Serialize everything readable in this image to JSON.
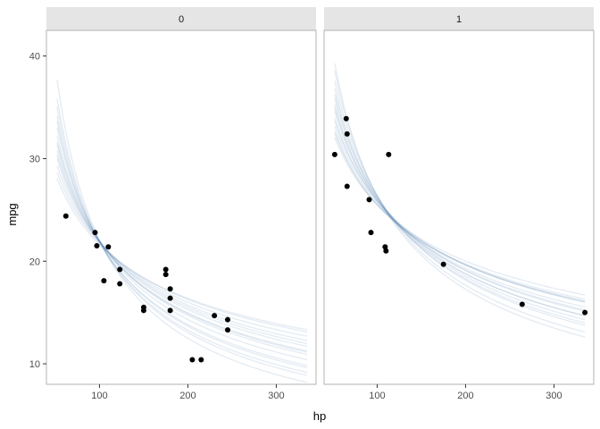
{
  "chart_data": {
    "type": "scatter",
    "title": "",
    "xlabel": "hp",
    "ylabel": "mpg",
    "xlim": [
      40,
      345
    ],
    "ylim": [
      8,
      42.5
    ],
    "x_ticks": [
      100,
      200,
      300
    ],
    "y_ticks": [
      10,
      20,
      30,
      40
    ],
    "grid": false,
    "colors": {
      "points": "#000000",
      "curves": "#4a7ba7",
      "strip_fill": "#e5e5e5",
      "panel_border": "#b3b3b3"
    },
    "curve_model": "mpg = a * hp^b (posterior draws)",
    "panels": [
      {
        "label": "0",
        "curve_range": [
          52,
          335
        ],
        "points": [
          [
            62,
            24.4
          ],
          [
            95,
            22.8
          ],
          [
            97,
            21.5
          ],
          [
            105,
            18.1
          ],
          [
            110,
            21.4
          ],
          [
            123,
            19.2
          ],
          [
            123,
            17.8
          ],
          [
            150,
            15.5
          ],
          [
            150,
            15.2
          ],
          [
            175,
            18.7
          ],
          [
            175,
            19.2
          ],
          [
            180,
            16.4
          ],
          [
            180,
            17.3
          ],
          [
            180,
            15.2
          ],
          [
            205,
            10.4
          ],
          [
            215,
            10.4
          ],
          [
            230,
            14.7
          ],
          [
            245,
            13.3
          ],
          [
            245,
            14.3
          ]
        ],
        "curve_draws": [
          [
            27.5,
            -0.45
          ],
          [
            29.0,
            -0.55
          ],
          [
            30.2,
            -0.62
          ],
          [
            28.3,
            -0.5
          ],
          [
            31.0,
            -0.68
          ],
          [
            27.0,
            -0.42
          ],
          [
            29.6,
            -0.58
          ],
          [
            30.6,
            -0.66
          ],
          [
            28.0,
            -0.48
          ],
          [
            32.2,
            -0.75
          ],
          [
            26.5,
            -0.4
          ],
          [
            29.2,
            -0.56
          ],
          [
            31.6,
            -0.72
          ],
          [
            28.6,
            -0.52
          ],
          [
            33.5,
            -0.82
          ]
        ]
      },
      {
        "label": "1",
        "curve_range": [
          52,
          335
        ],
        "points": [
          [
            52,
            30.4
          ],
          [
            65,
            33.9
          ],
          [
            66,
            32.4
          ],
          [
            66,
            27.3
          ],
          [
            91,
            26.0
          ],
          [
            93,
            22.8
          ],
          [
            109,
            21.4
          ],
          [
            110,
            21.0
          ],
          [
            113,
            30.4
          ],
          [
            175,
            19.7
          ],
          [
            264,
            15.8
          ],
          [
            335,
            15.0
          ]
        ],
        "curve_draws": [
          [
            32.0,
            -0.42
          ],
          [
            33.5,
            -0.48
          ],
          [
            31.0,
            -0.38
          ],
          [
            34.8,
            -0.54
          ],
          [
            32.8,
            -0.45
          ],
          [
            30.5,
            -0.35
          ],
          [
            33.8,
            -0.5
          ],
          [
            35.5,
            -0.58
          ],
          [
            31.8,
            -0.4
          ],
          [
            33.0,
            -0.47
          ],
          [
            34.2,
            -0.52
          ],
          [
            30.8,
            -0.37
          ],
          [
            32.5,
            -0.44
          ],
          [
            36.0,
            -0.61
          ],
          [
            31.4,
            -0.39
          ]
        ]
      }
    ]
  }
}
